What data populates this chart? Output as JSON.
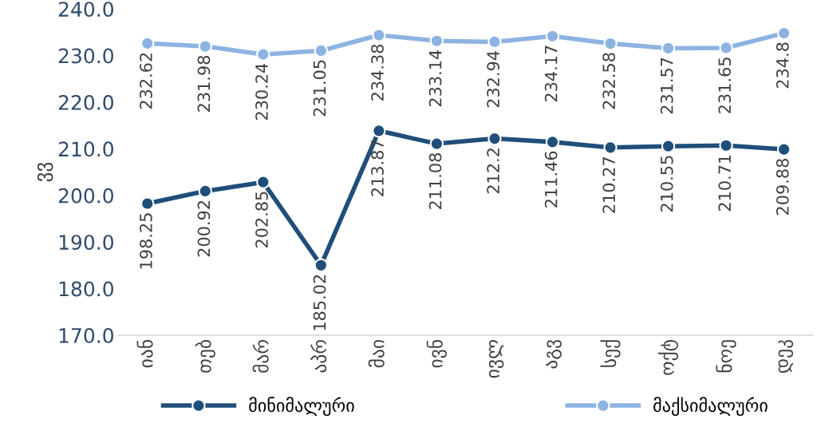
{
  "chart_data": {
    "type": "line",
    "ylabel": "ვვ",
    "categories": [
      "იან",
      "თებ",
      "მარ",
      "აპრ",
      "მაი",
      "ივნ",
      "ივლ",
      "აგვ",
      "სექ",
      "ოქტ",
      "ნოე",
      "დეკ"
    ],
    "series": [
      {
        "name": "მინიმალური",
        "color": "#1f4e79",
        "values": [
          198.25,
          200.92,
          202.85,
          185.02,
          213.87,
          211.08,
          212.2,
          211.46,
          210.27,
          210.55,
          210.71,
          209.88
        ]
      },
      {
        "name": "მაქსიმალური",
        "color": "#8db3e2",
        "values": [
          232.62,
          231.98,
          230.24,
          231.05,
          234.38,
          233.14,
          232.94,
          234.17,
          232.58,
          231.57,
          231.65,
          234.8
        ]
      }
    ],
    "ylim": [
      170,
      240
    ],
    "yticks": [
      {
        "value": 170,
        "label": "170.0"
      },
      {
        "value": 180,
        "label": "180.0"
      },
      {
        "value": 190,
        "label": "190.0"
      },
      {
        "value": 200,
        "label": "200.0"
      },
      {
        "value": 210,
        "label": "210.0"
      },
      {
        "value": 220,
        "label": "220.0"
      },
      {
        "value": 230,
        "label": "230.0"
      },
      {
        "value": 240,
        "label": "240.0"
      }
    ],
    "marker": "circle",
    "data_labels": true,
    "legend": "bottom",
    "grid": false
  }
}
